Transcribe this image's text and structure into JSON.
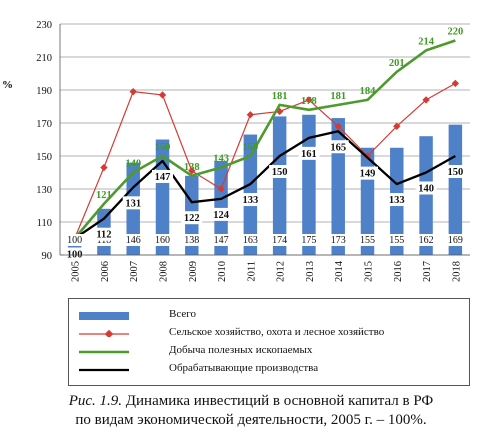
{
  "chart_data": {
    "type": "bar",
    "y_axis_label": "%",
    "ylim": [
      90,
      230
    ],
    "yticks": [
      90,
      110,
      130,
      150,
      170,
      190,
      210,
      230
    ],
    "categories": [
      "2005",
      "2006",
      "2007",
      "2008",
      "2009",
      "2010",
      "2011",
      "2012",
      "2013",
      "2014",
      "2015",
      "2016",
      "2017",
      "2018"
    ],
    "bar_series": {
      "name": "Всего",
      "color": "#4f81c9",
      "values": [
        100,
        118,
        146,
        160,
        138,
        147,
        163,
        174,
        175,
        173,
        155,
        155,
        162,
        169
      ]
    },
    "line_series": [
      {
        "name": "Сельское хозяйство, охота и лесное хозяйство",
        "color": "#d63a35",
        "marker": "diamond",
        "values": [
          100,
          143,
          189,
          187,
          141,
          130,
          175,
          177,
          184,
          168,
          150,
          168,
          184,
          194
        ]
      },
      {
        "name": "Добыча полезных ископаемых",
        "color": "#4e9a2f",
        "label_color": "#3e9a24",
        "values": [
          100,
          121,
          140,
          150,
          138,
          143,
          150,
          181,
          178,
          181,
          184,
          201,
          214,
          220
        ]
      },
      {
        "name": "Обрабатывающие производства",
        "color": "#000000",
        "values": [
          100,
          112,
          131,
          147,
          122,
          124,
          133,
          150,
          161,
          165,
          149,
          133,
          140,
          150
        ]
      }
    ],
    "legend_position": "bottom",
    "grid": "horizontal"
  },
  "caption": {
    "label": "Рис. 1.9.",
    "line1": "Динамика инвестиций в основной капитал в РФ",
    "line2": "по видам экономической деятельности, 2005 г. – 100%."
  }
}
